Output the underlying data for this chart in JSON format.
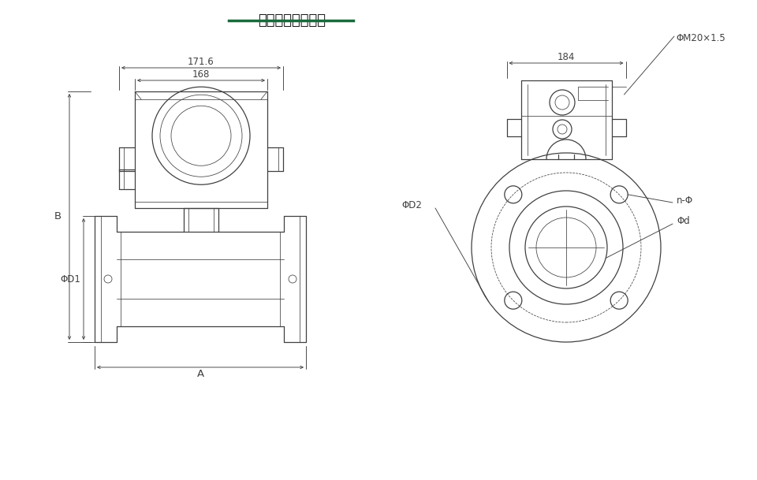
{
  "title": "防爆型电磁流量计",
  "title_color": "#1a1a1a",
  "title_underline_color": "#1a6b3c",
  "bg_color": "#ffffff",
  "line_color": "#404040",
  "dim_color": "#404040",
  "font_size_title": 13,
  "font_size_dim": 8.5,
  "font_size_label": 8.5,
  "dim_171_6": "171.6",
  "dim_168": "168",
  "dim_184": "184",
  "dim_A": "A",
  "dim_B": "B",
  "dim_phiD1": "ΦD1",
  "dim_phiD2": "ΦD2",
  "dim_phi_d": "Φd",
  "dim_n_phi": "n-Φ",
  "dim_phiM20": "ΦM20×1.5"
}
